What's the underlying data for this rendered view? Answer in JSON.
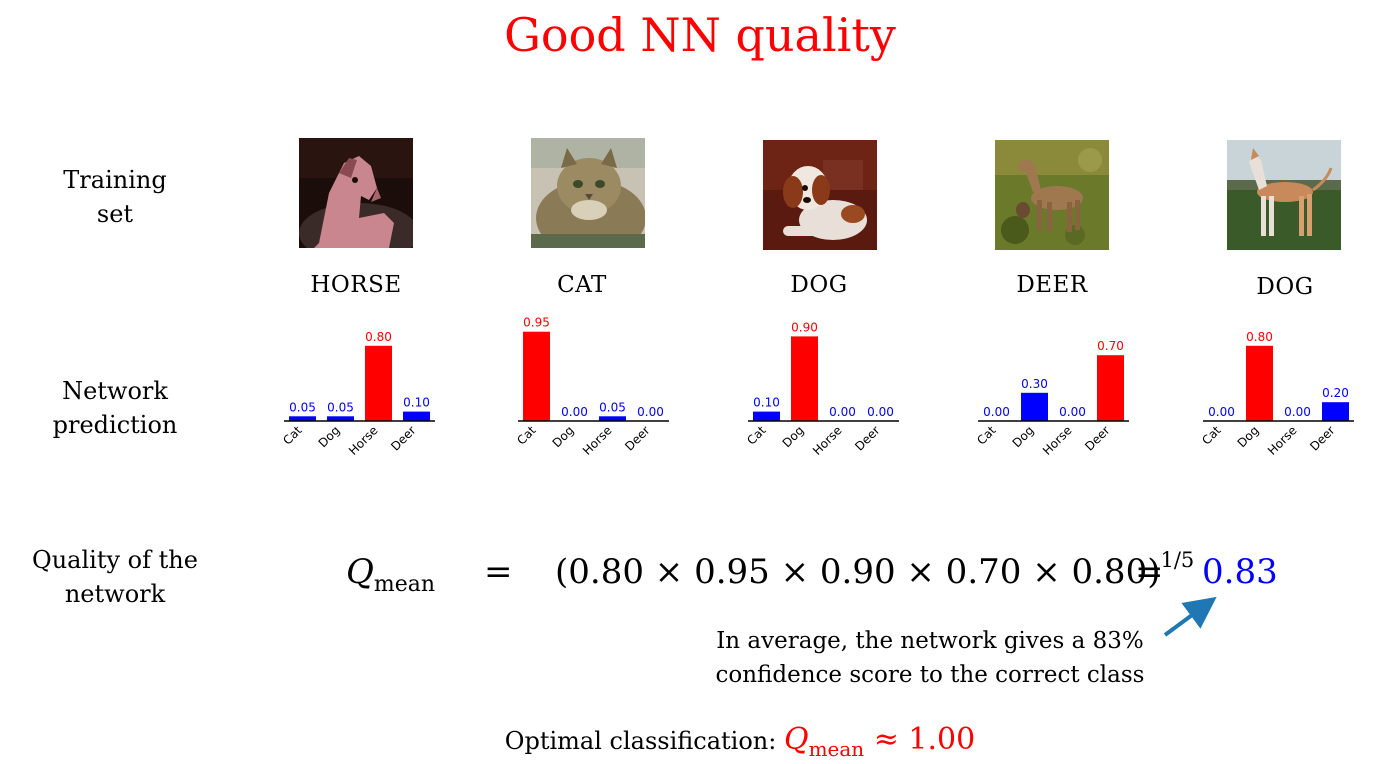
{
  "title": "Good NN quality",
  "row_labels": {
    "training": [
      "Training",
      "set"
    ],
    "prediction": [
      "Network",
      "prediction"
    ],
    "quality": [
      "Quality of the",
      "network"
    ]
  },
  "samples": [
    {
      "label": "HORSE",
      "image": "horse-photo"
    },
    {
      "label": "CAT",
      "image": "cat-photo"
    },
    {
      "label": "DOG",
      "image": "dog-photo"
    },
    {
      "label": "DEER",
      "image": "deer-photo"
    },
    {
      "label": "DOG",
      "image": "dog-photo-2"
    }
  ],
  "chart_data": [
    {
      "type": "bar",
      "categories": [
        "Cat",
        "Dog",
        "Horse",
        "Deer"
      ],
      "values": [
        0.05,
        0.05,
        0.8,
        0.1
      ],
      "value_labels": [
        "0.05",
        "0.05",
        "0.80",
        "0.10"
      ],
      "correct_index": 2,
      "ylim": [
        0,
        1
      ]
    },
    {
      "type": "bar",
      "categories": [
        "Cat",
        "Dog",
        "Horse",
        "Deer"
      ],
      "values": [
        0.95,
        0.0,
        0.05,
        0.0
      ],
      "value_labels": [
        "0.95",
        "0.00",
        "0.05",
        "0.00"
      ],
      "correct_index": 0,
      "ylim": [
        0,
        1
      ]
    },
    {
      "type": "bar",
      "categories": [
        "Cat",
        "Dog",
        "Horse",
        "Deer"
      ],
      "values": [
        0.1,
        0.9,
        0.0,
        0.0
      ],
      "value_labels": [
        "0.10",
        "0.90",
        "0.00",
        "0.00"
      ],
      "correct_index": 1,
      "ylim": [
        0,
        1
      ]
    },
    {
      "type": "bar",
      "categories": [
        "Cat",
        "Dog",
        "Horse",
        "Deer"
      ],
      "values": [
        0.0,
        0.3,
        0.0,
        0.7
      ],
      "value_labels": [
        "0.00",
        "0.30",
        "0.00",
        "0.70"
      ],
      "correct_index": 3,
      "ylim": [
        0,
        1
      ]
    },
    {
      "type": "bar",
      "categories": [
        "Cat",
        "Dog",
        "Horse",
        "Deer"
      ],
      "values": [
        0.0,
        0.8,
        0.0,
        0.2
      ],
      "value_labels": [
        "0.00",
        "0.80",
        "0.00",
        "0.20"
      ],
      "correct_index": 1,
      "ylim": [
        0,
        1
      ]
    }
  ],
  "colors": {
    "correct": "#ff0000",
    "other": "#0000ff",
    "title": "#ff0000",
    "arrow": "#1f77b4"
  },
  "formula": {
    "symbol": "Q",
    "subscript": "mean",
    "equals": "=",
    "expression": "(0.80 × 0.95 × 0.90 × 0.70 × 0.80)",
    "exponent": "1/5",
    "result": "0.83"
  },
  "note": [
    "In average, the network gives a 83%",
    "confidence score to the correct class"
  ],
  "optimal": {
    "label": "Optimal classification:",
    "symbol": "Q",
    "subscript": "mean",
    "relation": "≈",
    "value": "1.00"
  }
}
